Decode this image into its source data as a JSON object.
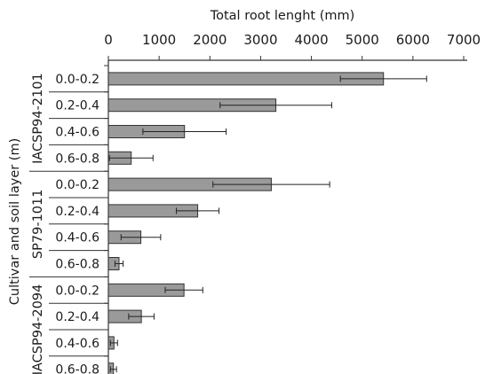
{
  "chart_data": {
    "type": "bar",
    "orientation": "horizontal",
    "xlabel": "Total root lenght (mm)",
    "ylabel": "Cultivar and soil layer (m)",
    "xlim": [
      0,
      7000
    ],
    "xticks": [
      0,
      1000,
      2000,
      3000,
      4000,
      5000,
      6000,
      7000
    ],
    "categories": [
      "0.0-0.2",
      "0.2-0.4",
      "0.4-0.6",
      "0.6-0.8",
      "0.0-0.2",
      "0.2-0.4",
      "0.4-0.6",
      "0.6-0.8",
      "0.0-0.2",
      "0.2-0.4",
      "0.4-0.6",
      "0.6-0.8"
    ],
    "groups": [
      {
        "name": "IACSP94-2101",
        "rows": [
          0,
          1,
          2,
          3
        ]
      },
      {
        "name": "SP79-1011",
        "rows": [
          4,
          5,
          6,
          7
        ]
      },
      {
        "name": "IACSP94-2094",
        "rows": [
          8,
          9,
          10,
          11
        ]
      }
    ],
    "values": [
      5420,
      3300,
      1500,
      450,
      3210,
      1760,
      640,
      210,
      1490,
      650,
      110,
      100
    ],
    "errors": [
      850,
      1100,
      820,
      430,
      1150,
      420,
      390,
      80,
      370,
      250,
      70,
      60
    ],
    "grid": false,
    "legend": "none"
  },
  "colors": {
    "bar_fill": "#9a9a9a",
    "bar_stroke": "#333333",
    "axis": "#333333",
    "text": "#1a1a1a"
  }
}
